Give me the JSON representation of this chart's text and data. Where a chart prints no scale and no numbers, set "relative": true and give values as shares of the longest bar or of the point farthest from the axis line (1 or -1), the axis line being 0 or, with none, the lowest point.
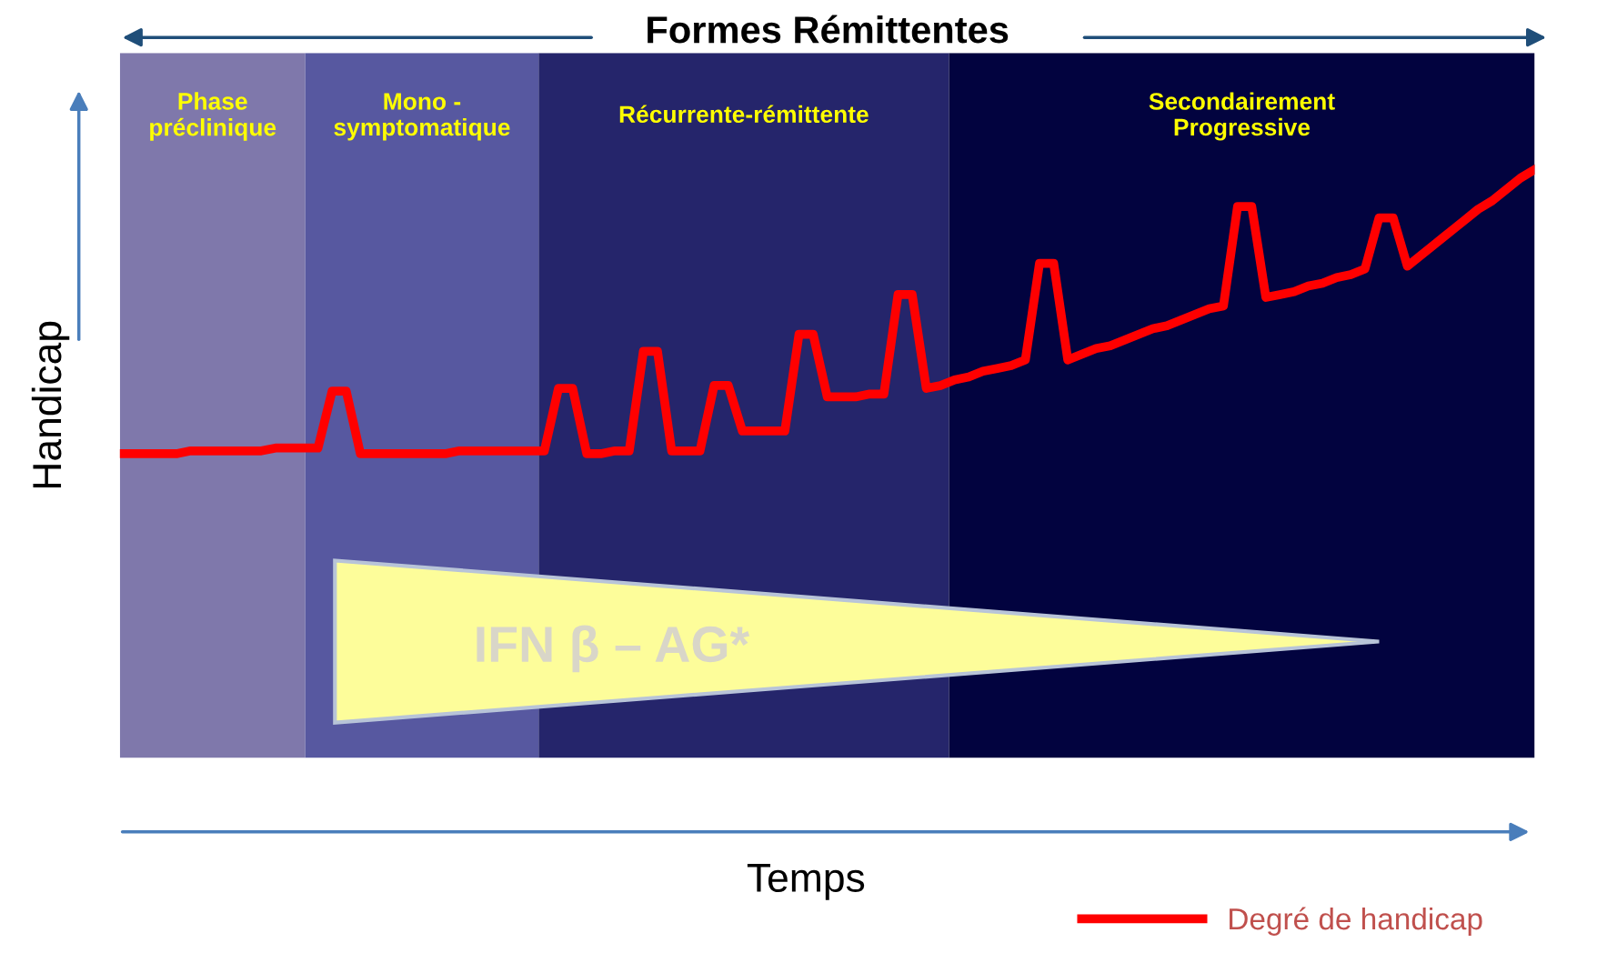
{
  "chart_data": {
    "type": "line",
    "title": "Formes Rémittentes",
    "ylabel": "Handicap",
    "relative": true,
    "legend": "bottom right",
    "marker": "none",
    "line_style": "solid",
    "categories": [
      null,
      null,
      null,
      null,
      null,
      null,
      null,
      null,
      null,
      null,
      null,
      null,
      null,
      null,
      null,
      null,
      null,
      null,
      null,
      null,
      null,
      null,
      null,
      null,
      null,
      null,
      null,
      null,
      null,
      null,
      null,
      null,
      null,
      null,
      null,
      null,
      null,
      null,
      null,
      null,
      null,
      null,
      null,
      null,
      null,
      null,
      null,
      null,
      null,
      null,
      null,
      null,
      null,
      null,
      null,
      null,
      null,
      null,
      null,
      null,
      null,
      null,
      null,
      null,
      null,
      null,
      null,
      null,
      null,
      null,
      null,
      null,
      null,
      null,
      null,
      null,
      null,
      null,
      null,
      null,
      null,
      null,
      null,
      null,
      null,
      null,
      null,
      null,
      null,
      null,
      null,
      null,
      null,
      null,
      null,
      null,
      null,
      null,
      null,
      null,
      null
    ],
    "series": [
      {
        "name": "Degré de handicap",
        "color": "#ff0000",
        "values": [
          0,
          0,
          0,
          0,
          0,
          0.01,
          0.01,
          0.01,
          0.01,
          0.01,
          0.01,
          0.02,
          0.02,
          0.02,
          0.02,
          0.22,
          0.22,
          0,
          0,
          0,
          0,
          0,
          0,
          0,
          0.01,
          0.01,
          0.01,
          0.01,
          0.01,
          0.01,
          0.01,
          0.23,
          0.23,
          0,
          0,
          0.01,
          0.01,
          0.36,
          0.36,
          0.01,
          0.01,
          0.01,
          0.24,
          0.24,
          0.08,
          0.08,
          0.08,
          0.08,
          0.42,
          0.42,
          0.2,
          0.2,
          0.2,
          0.21,
          0.21,
          0.56,
          0.56,
          0.23,
          0.24,
          0.26,
          0.27,
          0.29,
          0.3,
          0.31,
          0.33,
          0.67,
          0.67,
          0.33,
          0.35,
          0.37,
          0.38,
          0.4,
          0.42,
          0.44,
          0.45,
          0.47,
          0.49,
          0.51,
          0.52,
          0.87,
          0.87,
          0.55,
          0.56,
          0.57,
          0.59,
          0.6,
          0.62,
          0.63,
          0.65,
          0.83,
          0.83,
          0.66,
          0.7,
          0.74,
          0.78,
          0.82,
          0.86,
          0.89,
          0.93,
          0.97,
          1.0
        ]
      }
    ],
    "annotations": [
      "Phase\npréclinique",
      "Mono -\nsymptomatique",
      "Récurrente-rémittente",
      "Secondairement\nProgressive",
      "IFN β – AG*",
      "Temps"
    ]
  }
}
